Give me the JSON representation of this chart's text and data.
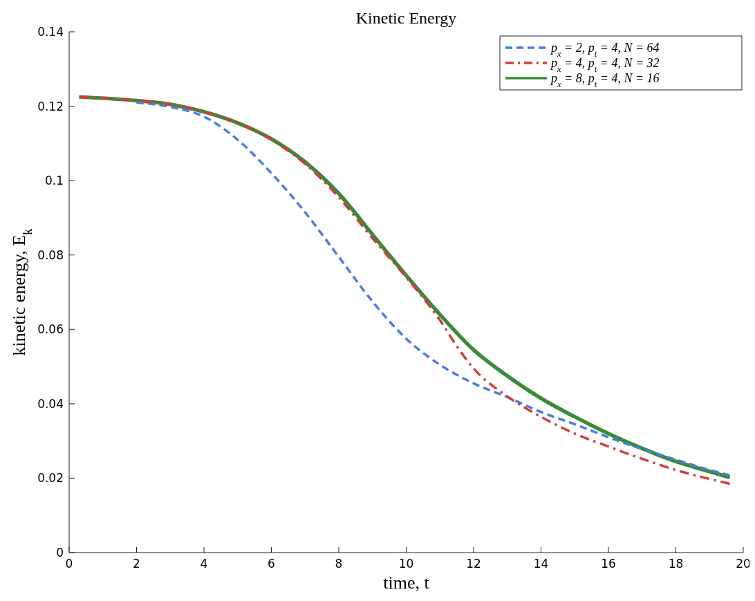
{
  "chart_data": {
    "type": "line",
    "title": "Kinetic Energy",
    "xlabel": "time, t",
    "ylabel": "kinetic energy, E$_{k}$",
    "xlim": [
      0,
      20
    ],
    "ylim": [
      0,
      0.14
    ],
    "xticks": [
      0,
      2,
      4,
      6,
      8,
      10,
      12,
      14,
      16,
      18,
      20
    ],
    "yticks": [
      0,
      0.02,
      0.04,
      0.06,
      0.08,
      0.1,
      0.12,
      0.14
    ],
    "grid": false,
    "legend": "top right",
    "series": [
      {
        "name": "p$_{x}$ = 2, p$_{t}$ = 4, N = 64",
        "color": "#4a7de0",
        "line_style": "dashed",
        "x": [
          2,
          3,
          4,
          5,
          6,
          7,
          8,
          9,
          10,
          11,
          12,
          13,
          14,
          15,
          16,
          17,
          18,
          19,
          19.6
        ],
        "values": [
          0.121,
          0.1198,
          0.1172,
          0.111,
          0.102,
          0.0915,
          0.0795,
          0.0675,
          0.0575,
          0.0505,
          0.0455,
          0.0418,
          0.0378,
          0.0345,
          0.031,
          0.0278,
          0.025,
          0.0222,
          0.0208
        ]
      },
      {
        "name": "p$_{x}$ = 4, p$_{t}$ = 4, N = 32",
        "color": "#d63a3a",
        "line_style": "dashdot",
        "x": [
          0.3,
          2,
          3,
          4,
          5,
          6,
          7,
          8,
          9,
          10,
          11,
          11.5,
          12,
          13,
          14,
          15,
          16,
          17,
          18,
          19,
          19.6
        ],
        "values": [
          0.1225,
          0.1215,
          0.1205,
          0.1185,
          0.1155,
          0.111,
          0.1045,
          0.0955,
          0.0845,
          0.074,
          0.0625,
          0.0555,
          0.0495,
          0.042,
          0.0365,
          0.032,
          0.0285,
          0.0252,
          0.0222,
          0.0198,
          0.0185
        ]
      },
      {
        "name": "p$_{x}$ = 8, p$_{t}$ = 4, N = 16",
        "color": "#3a8a3a",
        "line_style": "solid",
        "x": [
          0.3,
          2,
          3,
          4,
          5,
          6,
          7,
          8,
          9,
          10,
          11,
          12,
          13,
          14,
          15,
          16,
          17,
          18,
          19,
          19.6
        ],
        "values": [
          0.1225,
          0.1215,
          0.1205,
          0.1185,
          0.1155,
          0.1112,
          0.105,
          0.0965,
          0.0855,
          0.0745,
          0.064,
          0.0545,
          0.0475,
          0.0415,
          0.0365,
          0.032,
          0.028,
          0.0245,
          0.0218,
          0.0202
        ]
      }
    ]
  }
}
